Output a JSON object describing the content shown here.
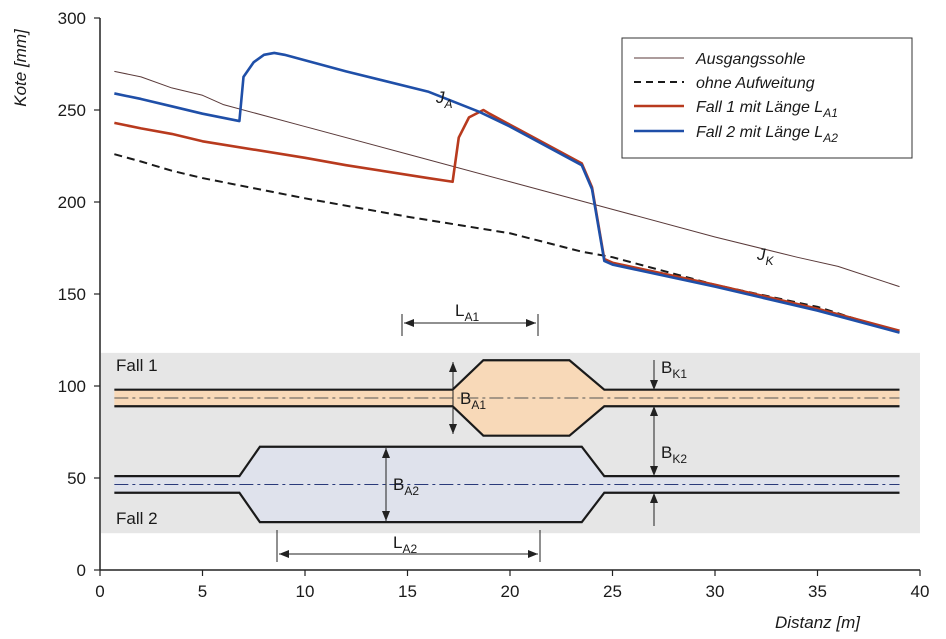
{
  "chart_data": {
    "type": "line",
    "title": "",
    "xlabel": "Distanz  [m]",
    "ylabel": "Kote [mm]",
    "xlim": [
      0,
      40
    ],
    "ylim": [
      0,
      300
    ],
    "xticks": [
      0,
      5,
      10,
      15,
      20,
      25,
      30,
      35,
      40
    ],
    "yticks": [
      0,
      50,
      100,
      150,
      200,
      250,
      300
    ],
    "grid": false,
    "legend_position": "top-right",
    "series": [
      {
        "name": "Ausgangssohle",
        "color": "#5a3a3a",
        "style": "thin-solid",
        "x": [
          0.7,
          2,
          3.5,
          5,
          6,
          10,
          15,
          20,
          25,
          30,
          34,
          36,
          39
        ],
        "y": [
          271,
          268,
          262,
          258,
          253,
          241,
          226,
          211,
          196,
          181,
          170,
          165,
          154
        ]
      },
      {
        "name": "ohne Aufweitung",
        "color": "#1a1a1a",
        "style": "dashed",
        "x": [
          0.7,
          2,
          3.5,
          5,
          10,
          15,
          20,
          23.5,
          25,
          30,
          35,
          39
        ],
        "y": [
          226,
          222,
          217,
          213,
          202,
          192,
          183,
          173,
          170,
          155,
          143,
          129
        ]
      },
      {
        "name": "Fall 1 mit Länge L",
        "name_sub": "A1",
        "color": "#b83a1e",
        "style": "solid",
        "x": [
          0.7,
          2,
          3.5,
          5,
          10,
          12,
          16,
          17.2,
          17.5,
          18,
          18.7,
          19,
          20,
          21,
          23.5,
          24,
          24.6,
          25,
          30,
          35,
          39
        ],
        "y": [
          243,
          240,
          237,
          233,
          224,
          220,
          213,
          211,
          235,
          246,
          250,
          248,
          242,
          236,
          221,
          208,
          169,
          167,
          155,
          142,
          130
        ]
      },
      {
        "name": "Fall 2 mit Länge L",
        "name_sub": "A2",
        "color": "#1f4fa8",
        "style": "solid",
        "x": [
          0.7,
          2,
          3.5,
          5,
          6.8,
          7,
          7.5,
          8,
          8.5,
          9,
          12,
          16,
          18.5,
          20,
          21,
          23.5,
          24,
          24.6,
          25,
          30,
          35,
          39
        ],
        "y": [
          259,
          256,
          252,
          248,
          244,
          268,
          276,
          280,
          281,
          280,
          271,
          260,
          249,
          241,
          235,
          220,
          207,
          168,
          166,
          154,
          141,
          129
        ]
      }
    ],
    "annotations": {
      "ja_main": "J",
      "ja_sub": "A",
      "jk_main": "J",
      "jk_sub": "K",
      "la1_main": "L",
      "la1_sub": "A1",
      "la2_main": "L",
      "la2_sub": "A2",
      "ba1_main": "B",
      "ba1_sub": "A1",
      "ba2_main": "B",
      "ba2_sub": "A2",
      "bk1_main": "B",
      "bk1_sub": "K1",
      "bk2_main": "B",
      "bk2_sub": "K2",
      "fall1": "Fall 1",
      "fall2": "Fall 2"
    },
    "planform": {
      "fall1": {
        "x": [
          0.7,
          12,
          17.2,
          18.7,
          22.9,
          24.6,
          39
        ],
        "upper": [
          98,
          98,
          98,
          114,
          114,
          98,
          98
        ],
        "lower": [
          89,
          89,
          89,
          73,
          73,
          89,
          89
        ],
        "centerline": 93.5,
        "fill": "#f8d9b8"
      },
      "fall2": {
        "x": [
          0.7,
          6.8,
          7.8,
          23.5,
          24.6,
          39
        ],
        "upper": [
          51,
          51,
          67,
          67,
          51,
          51
        ],
        "lower": [
          42,
          42,
          26,
          26,
          42,
          42
        ],
        "centerline": 46.5,
        "fill": "#dfe2ec"
      },
      "band": [
        20,
        118
      ],
      "band_color": "#e6e6e6"
    }
  }
}
